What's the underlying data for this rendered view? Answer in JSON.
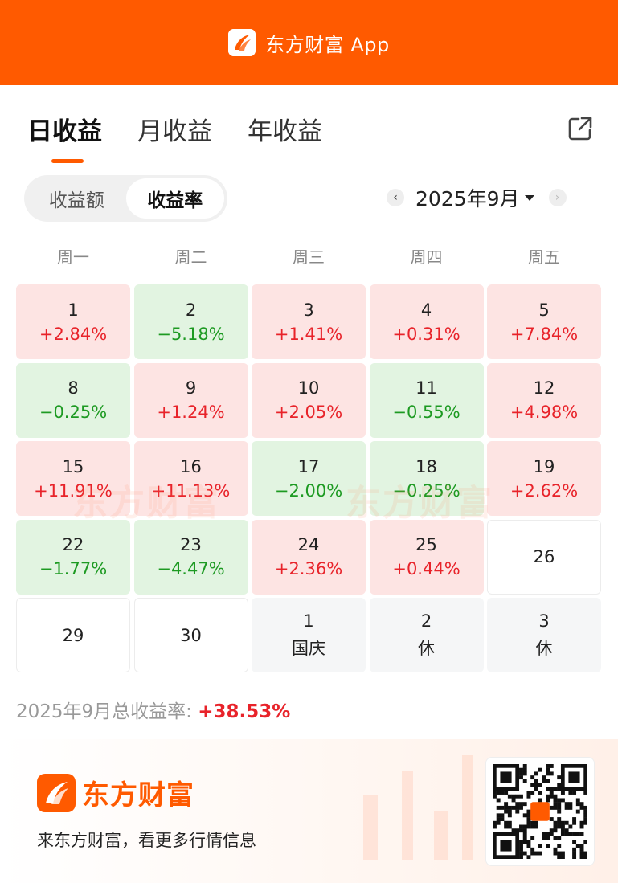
{
  "header": {
    "title": "东方财富 App"
  },
  "tabs": [
    {
      "label": "日收益",
      "active": true
    },
    {
      "label": "月收益",
      "active": false
    },
    {
      "label": "年收益",
      "active": false
    }
  ],
  "segment": [
    {
      "label": "收益额",
      "active": false
    },
    {
      "label": "收益率",
      "active": true
    }
  ],
  "month_nav": {
    "label": "2025年9月",
    "prev": "‹",
    "next": "›"
  },
  "weekdays": [
    "周一",
    "周二",
    "周三",
    "周四",
    "周五"
  ],
  "days": [
    {
      "day": "1",
      "value": "+2.84%",
      "type": "up"
    },
    {
      "day": "2",
      "value": "−5.18%",
      "type": "down"
    },
    {
      "day": "3",
      "value": "+1.41%",
      "type": "up"
    },
    {
      "day": "4",
      "value": "+0.31%",
      "type": "up"
    },
    {
      "day": "5",
      "value": "+7.84%",
      "type": "up"
    },
    {
      "day": "8",
      "value": "−0.25%",
      "type": "down"
    },
    {
      "day": "9",
      "value": "+1.24%",
      "type": "up"
    },
    {
      "day": "10",
      "value": "+2.05%",
      "type": "up"
    },
    {
      "day": "11",
      "value": "−0.55%",
      "type": "down"
    },
    {
      "day": "12",
      "value": "+4.98%",
      "type": "up"
    },
    {
      "day": "15",
      "value": "+11.91%",
      "type": "up"
    },
    {
      "day": "16",
      "value": "+11.13%",
      "type": "up"
    },
    {
      "day": "17",
      "value": "−2.00%",
      "type": "down"
    },
    {
      "day": "18",
      "value": "−0.25%",
      "type": "down"
    },
    {
      "day": "19",
      "value": "+2.62%",
      "type": "up"
    },
    {
      "day": "22",
      "value": "−1.77%",
      "type": "down"
    },
    {
      "day": "23",
      "value": "−4.47%",
      "type": "down"
    },
    {
      "day": "24",
      "value": "+2.36%",
      "type": "up"
    },
    {
      "day": "25",
      "value": "+0.44%",
      "type": "up"
    },
    {
      "day": "26",
      "value": "",
      "type": "empty"
    },
    {
      "day": "29",
      "value": "",
      "type": "empty"
    },
    {
      "day": "30",
      "value": "",
      "type": "empty"
    },
    {
      "day": "1",
      "value": "国庆",
      "type": "holiday"
    },
    {
      "day": "2",
      "value": "休",
      "type": "holiday"
    },
    {
      "day": "3",
      "value": "休",
      "type": "holiday"
    }
  ],
  "watermark": "东方财富",
  "summary": {
    "label": "2025年9月总收益率: ",
    "value": "+38.53%"
  },
  "footer": {
    "brand": "东方财富",
    "slogan": "来东方财富，看更多行情信息"
  },
  "colors": {
    "brand": "#ff5a00",
    "up": "#e8232a",
    "down": "#1d9a22"
  }
}
